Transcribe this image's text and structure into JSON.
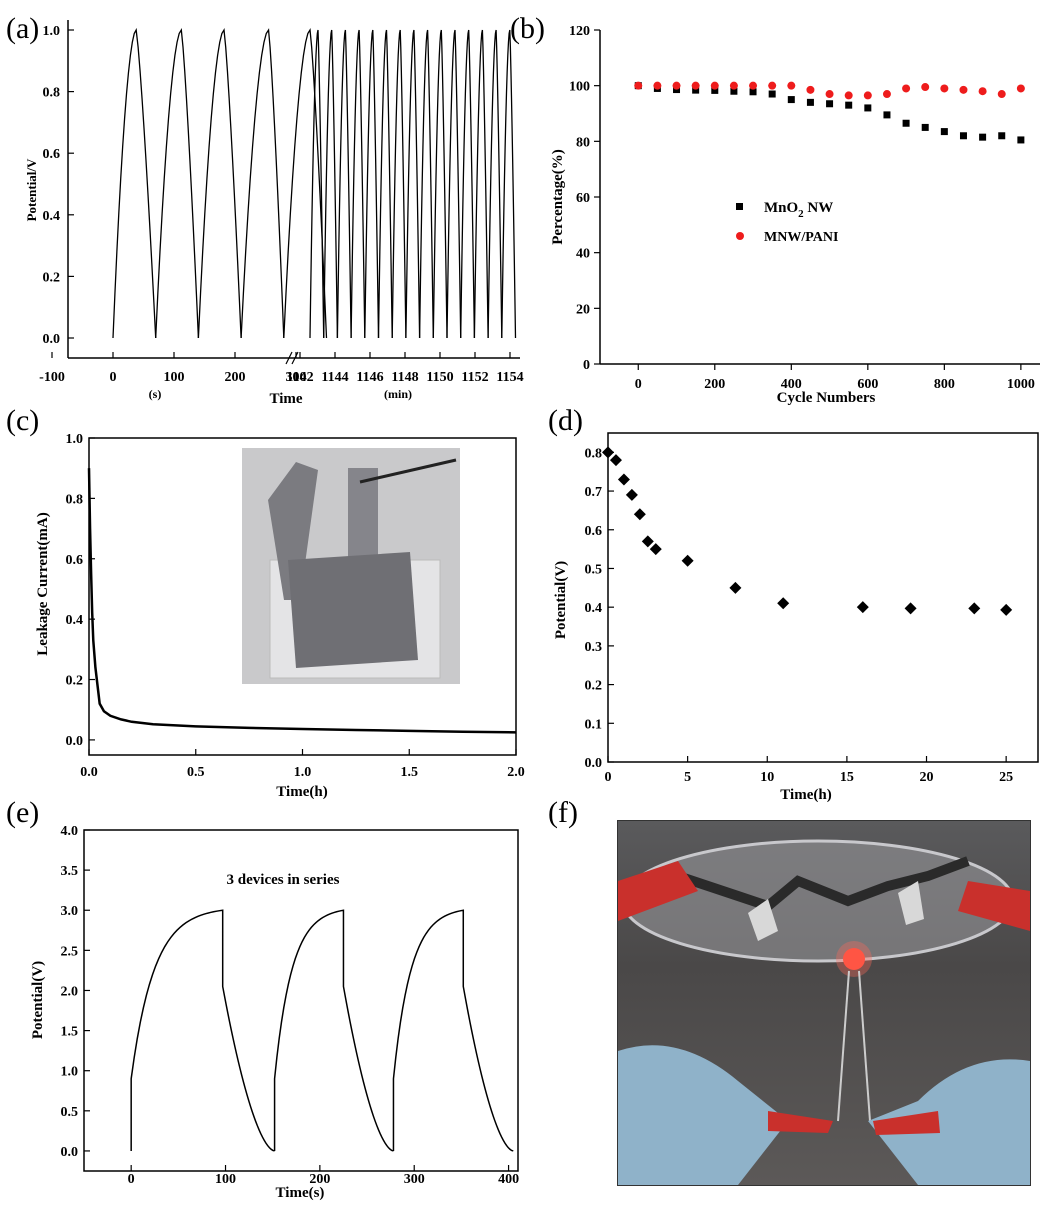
{
  "panel_labels": {
    "a": "(a)",
    "b": "(b)",
    "c": "(c)",
    "d": "(d)",
    "e": "(e)",
    "f": "(f)"
  },
  "chart_data": [
    {
      "id": "a",
      "type": "line",
      "ylabel": "Potential/V",
      "xlabel": "Time",
      "x_unit_left": "(s)",
      "x_unit_right": "(min)",
      "yticks": [
        "0.0",
        "0.2",
        "0.4",
        "0.6",
        "0.8",
        "1.0"
      ],
      "xticks_left": [
        "-100",
        "0",
        "100",
        "200",
        "300"
      ],
      "xticks_right": [
        "1142",
        "1144",
        "1146",
        "1148",
        "1150",
        "1152",
        "1154"
      ],
      "ylim": [
        -0.1,
        1.05
      ],
      "left_cycles_s": [
        [
          0,
          38,
          70
        ],
        [
          70,
          112,
          140
        ],
        [
          140,
          182,
          210
        ],
        [
          210,
          255,
          280
        ],
        [
          280,
          323,
          350
        ]
      ],
      "right_cycles_min": [
        1142.1,
        1142.55,
        1143.0,
        1143.45,
        1143.9,
        1144.35,
        1144.8,
        1145.25,
        1145.7,
        1146.15,
        1146.6,
        1147.05,
        1147.5,
        1147.95,
        1148.4
      ],
      "right_axis_range_min": [
        1142,
        1154
      ]
    },
    {
      "id": "b",
      "type": "scatter",
      "xlabel": "Cycle Numbers",
      "ylabel": "Percentage(%)",
      "xlim": [
        -100,
        1050
      ],
      "ylim": [
        0,
        120
      ],
      "xticks": [
        "0",
        "200",
        "400",
        "600",
        "800",
        "1000"
      ],
      "yticks": [
        "0",
        "20",
        "40",
        "60",
        "80",
        "100",
        "120"
      ],
      "legend_position": "center",
      "series": [
        {
          "name": "MnO2 NW",
          "label_main": "MnO",
          "label_sub": "2",
          "label_tail": " NW",
          "marker": "square",
          "color": "#000000",
          "x": [
            0,
            50,
            100,
            150,
            200,
            250,
            300,
            350,
            400,
            450,
            500,
            550,
            600,
            650,
            700,
            750,
            800,
            850,
            900,
            950,
            1000
          ],
          "y": [
            100,
            99,
            98.6,
            98.4,
            98.3,
            98,
            97.8,
            97,
            95,
            94,
            93.5,
            93,
            92,
            89.5,
            86.5,
            85,
            83.5,
            82,
            81.5,
            82,
            80.5
          ]
        },
        {
          "name": "MNW/PANI",
          "marker": "circle",
          "color": "#ee1c1c",
          "x": [
            0,
            50,
            100,
            150,
            200,
            250,
            300,
            350,
            400,
            450,
            500,
            550,
            600,
            650,
            700,
            750,
            800,
            850,
            900,
            950,
            1000
          ],
          "y": [
            100,
            100,
            100,
            100,
            100,
            100,
            100,
            100,
            100,
            98.5,
            97,
            96.5,
            96.5,
            97,
            99,
            99.5,
            99,
            98.5,
            98,
            97,
            99
          ]
        }
      ]
    },
    {
      "id": "c",
      "type": "line",
      "xlabel": "Time(h)",
      "ylabel": "Leakage Current(mA)",
      "xlim": [
        0,
        2.0
      ],
      "ylim": [
        -0.05,
        1.0
      ],
      "xticks": [
        "0.0",
        "0.5",
        "1.0",
        "1.5",
        "2.0"
      ],
      "yticks": [
        "0.0",
        "0.2",
        "0.4",
        "0.6",
        "0.8",
        "1.0"
      ],
      "x": [
        0,
        0.005,
        0.01,
        0.015,
        0.02,
        0.03,
        0.04,
        0.05,
        0.07,
        0.1,
        0.15,
        0.2,
        0.3,
        0.5,
        0.75,
        1.0,
        1.25,
        1.5,
        1.75,
        2.0
      ],
      "y": [
        0.9,
        0.7,
        0.55,
        0.42,
        0.33,
        0.24,
        0.18,
        0.12,
        0.095,
        0.08,
        0.068,
        0.06,
        0.052,
        0.045,
        0.04,
        0.036,
        0.033,
        0.03,
        0.027,
        0.025
      ]
    },
    {
      "id": "d",
      "type": "scatter",
      "xlabel": "Time(h)",
      "ylabel": "Potential(V)",
      "xlim": [
        0,
        27
      ],
      "ylim": [
        0,
        0.85
      ],
      "xticks": [
        "0",
        "5",
        "10",
        "15",
        "20",
        "25"
      ],
      "yticks": [
        "0.0",
        "0.1",
        "0.2",
        "0.3",
        "0.4",
        "0.5",
        "0.6",
        "0.7",
        "0.8"
      ],
      "x": [
        0,
        0.5,
        1,
        1.5,
        2,
        2.5,
        3,
        5,
        8,
        11,
        16,
        19,
        23,
        25
      ],
      "y": [
        0.8,
        0.78,
        0.73,
        0.69,
        0.64,
        0.57,
        0.55,
        0.52,
        0.45,
        0.41,
        0.4,
        0.397,
        0.397,
        0.393
      ]
    },
    {
      "id": "e",
      "type": "line",
      "xlabel": "Time(s)",
      "ylabel": "Potential(V)",
      "annotation": "3 devices in series",
      "xlim": [
        -50,
        410
      ],
      "ylim": [
        -0.25,
        4.0
      ],
      "xticks": [
        "0",
        "100",
        "200",
        "300",
        "400"
      ],
      "yticks": [
        "0.0",
        "0.5",
        "1.0",
        "1.5",
        "2.0",
        "2.5",
        "3.0",
        "3.5",
        "4.0"
      ],
      "cycles": [
        [
          0,
          97,
          152
        ],
        [
          152,
          225,
          278
        ],
        [
          278,
          352,
          405
        ]
      ],
      "peak": 3.0
    }
  ]
}
